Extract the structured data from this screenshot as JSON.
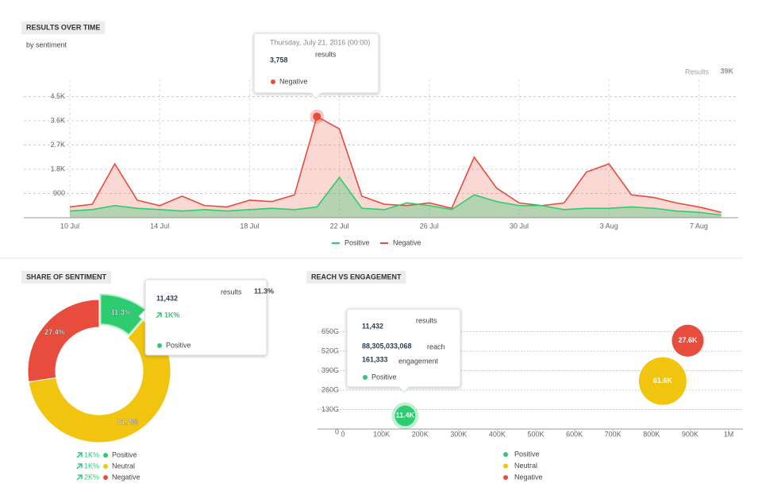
{
  "chart_data": [
    {
      "type": "area",
      "title": "RESULTS OVER TIME",
      "subtitle": "by sentiment",
      "total": {
        "label": "Results",
        "value": "39K"
      },
      "categories": [
        "10 Jul",
        null,
        null,
        null,
        "14 Jul",
        null,
        null,
        null,
        "18 Jul",
        null,
        null,
        null,
        "22 Jul",
        null,
        null,
        null,
        "26 Jul",
        null,
        null,
        null,
        "30 Jul",
        null,
        null,
        null,
        "3 Aug",
        null,
        null,
        null,
        "7 Aug",
        null
      ],
      "series": [
        {
          "name": "Positive",
          "color": "#2ecc71",
          "values": [
            250,
            300,
            450,
            350,
            300,
            250,
            300,
            250,
            300,
            350,
            300,
            400,
            1500,
            350,
            300,
            550,
            450,
            300,
            850,
            600,
            450,
            450,
            300,
            350,
            350,
            400,
            350,
            250,
            200,
            100
          ]
        },
        {
          "name": "Negative",
          "color": "#e74c3c",
          "values": [
            400,
            500,
            2000,
            650,
            450,
            800,
            450,
            400,
            650,
            600,
            850,
            3758,
            3300,
            800,
            500,
            450,
            550,
            350,
            2250,
            1100,
            550,
            450,
            550,
            1700,
            2000,
            850,
            750,
            550,
            400,
            200
          ]
        }
      ],
      "ylim": [
        0,
        4900
      ],
      "yticks": [
        900,
        {
          "value": 1800,
          "label": "1.8K"
        },
        {
          "value": 2700,
          "label": "2.7K"
        },
        {
          "value": 3600,
          "label": "3.6K"
        },
        {
          "value": 4500,
          "label": "4.5K"
        }
      ],
      "grid": true,
      "tooltip": {
        "date": "Thursday, July 21, 2016 (00:00)",
        "value": "3,758",
        "unit": "results"
      }
    },
    {
      "type": "donut",
      "title": "SHARE OF SENTIMENT",
      "categories": [
        "Positive",
        "Neutral",
        "Negative"
      ],
      "values": [
        11.3,
        61.2,
        27.4
      ],
      "value_labels": [
        "11.3%",
        "61.2%",
        "27.4%"
      ],
      "colors": [
        "#2ecc71",
        "#f1c40f",
        "#e74c3c"
      ],
      "changes": [
        "1K%",
        "1K%",
        "2K%"
      ],
      "tooltip": {
        "value": "11,432",
        "unit": "results"
      }
    },
    {
      "type": "bubble",
      "title": "REACH VS ENGAGEMENT",
      "series": [
        {
          "name": "Positive",
          "color": "#2ecc71",
          "x": [
            161333
          ],
          "values": [
            88.3
          ],
          "sizes": [
            11432
          ],
          "size_labels": [
            "11.4K"
          ]
        },
        {
          "name": "Neutral",
          "color": "#f1c40f",
          "x": [
            829000
          ],
          "values": [
            320
          ],
          "sizes": [
            61600
          ],
          "size_labels": [
            "61.6K"
          ]
        },
        {
          "name": "Negative",
          "color": "#e74c3c",
          "x": [
            894000
          ],
          "values": [
            590
          ],
          "sizes": [
            27600
          ],
          "size_labels": [
            "27.6K"
          ]
        }
      ],
      "xlim": [
        0,
        1000000
      ],
      "xticks": [
        0,
        {
          "value": 100000,
          "label": "100K"
        },
        {
          "value": 200000,
          "label": "200K"
        },
        {
          "value": 300000,
          "label": "300K"
        },
        {
          "value": 400000,
          "label": "400K"
        },
        {
          "value": 500000,
          "label": "500K"
        },
        {
          "value": 600000,
          "label": "600K"
        },
        {
          "value": 700000,
          "label": "700K"
        },
        {
          "value": 800000,
          "label": "800K"
        },
        {
          "value": 900000,
          "label": "900K"
        },
        {
          "value": 1000000,
          "label": "1M"
        }
      ],
      "ylim": [
        0,
        700
      ],
      "yticks": [
        0,
        {
          "value": 130,
          "label": "130G"
        },
        {
          "value": 260,
          "label": "260G"
        },
        {
          "value": 390,
          "label": "390G"
        },
        {
          "value": 520,
          "label": "520G"
        },
        {
          "value": 650,
          "label": "650G"
        }
      ],
      "grid": true,
      "tooltip": {
        "value": "11,432",
        "unit": "results",
        "reach": "88,305,033,068",
        "reach_label": "reach",
        "engagement": "161,333",
        "engagement_label": "engagement"
      }
    }
  ]
}
